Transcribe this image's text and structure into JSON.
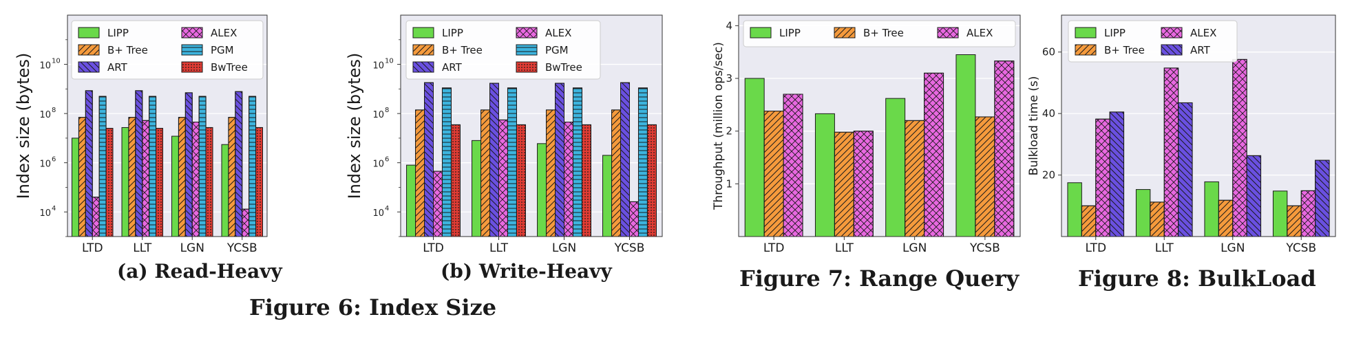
{
  "colors": {
    "LIPP": "#6ad94a",
    "B+ Tree": "#f59a3c",
    "ART": "#6a50e0",
    "ALEX": "#e868e0",
    "PGM": "#3cb4de",
    "BwTree": "#e03c34"
  },
  "captions": {
    "a": "(a) Read-Heavy",
    "b": "(b) Write-Heavy",
    "fig6": "Figure 6: Index Size",
    "fig7": "Figure 7: Range Query",
    "fig8": "Figure 8: BulkLoad"
  },
  "chart_data": [
    {
      "id": "read-heavy",
      "type": "bar",
      "yscale": "log",
      "title": "",
      "xlabel": "",
      "ylabel": "Index size (bytes)",
      "ylim": [
        1000,
        1000000000000
      ],
      "yticks": [
        10000,
        1000000,
        100000000,
        10000000000
      ],
      "ytick_labels": [
        [
          "10",
          "4"
        ],
        [
          "10",
          "6"
        ],
        [
          "10",
          "8"
        ],
        [
          "10",
          "10"
        ]
      ],
      "categories": [
        "LTD",
        "LLT",
        "LGN",
        "YCSB"
      ],
      "legend": {
        "position": "top-left",
        "columns": 2,
        "order": [
          "LIPP",
          "ALEX",
          "B+ Tree",
          "PGM",
          "ART",
          "BwTree"
        ]
      },
      "series": [
        {
          "name": "LIPP",
          "values": [
            10000000,
            27000000,
            12000000,
            5500000
          ]
        },
        {
          "name": "B+ Tree",
          "values": [
            70000000,
            70000000,
            70000000,
            70000000
          ]
        },
        {
          "name": "ART",
          "values": [
            850000000,
            850000000,
            700000000,
            780000000
          ]
        },
        {
          "name": "ALEX",
          "values": [
            40000,
            52000000,
            45000000,
            13000
          ]
        },
        {
          "name": "PGM",
          "values": [
            500000000,
            500000000,
            500000000,
            500000000
          ]
        },
        {
          "name": "BwTree",
          "values": [
            25000000,
            25000000,
            27000000,
            27000000
          ]
        }
      ]
    },
    {
      "id": "write-heavy",
      "type": "bar",
      "yscale": "log",
      "title": "",
      "xlabel": "",
      "ylabel": "Index size (bytes)",
      "ylim": [
        1000,
        1000000000000
      ],
      "yticks": [
        10000,
        1000000,
        100000000,
        10000000000
      ],
      "ytick_labels": [
        [
          "10",
          "4"
        ],
        [
          "10",
          "6"
        ],
        [
          "10",
          "8"
        ],
        [
          "10",
          "10"
        ]
      ],
      "categories": [
        "LTD",
        "LLT",
        "LGN",
        "YCSB"
      ],
      "legend": {
        "position": "top-left",
        "columns": 2,
        "order": [
          "LIPP",
          "ALEX",
          "B+ Tree",
          "PGM",
          "ART",
          "BwTree"
        ]
      },
      "series": [
        {
          "name": "LIPP",
          "values": [
            800000,
            8000000,
            6000000,
            2000000
          ]
        },
        {
          "name": "B+ Tree",
          "values": [
            140000000,
            140000000,
            140000000,
            140000000
          ]
        },
        {
          "name": "ART",
          "values": [
            1800000000,
            1700000000,
            1700000000,
            1800000000
          ]
        },
        {
          "name": "ALEX",
          "values": [
            450000,
            55000000,
            45000000,
            26000
          ]
        },
        {
          "name": "PGM",
          "values": [
            1100000000,
            1100000000,
            1100000000,
            1100000000
          ]
        },
        {
          "name": "BwTree",
          "values": [
            35000000,
            35000000,
            35000000,
            35000000
          ]
        }
      ]
    },
    {
      "id": "range-query",
      "type": "bar",
      "title": "",
      "xlabel": "",
      "ylabel": "Throughput (million ops/sec)",
      "ylim": [
        0,
        4.2
      ],
      "yticks": [
        1,
        2,
        3,
        4
      ],
      "ytick_labels": [
        "1",
        "2",
        "3",
        "4"
      ],
      "categories": [
        "LTD",
        "LLT",
        "LGN",
        "YCSB"
      ],
      "legend": {
        "position": "top",
        "columns": 3,
        "order": [
          "LIPP",
          "B+ Tree",
          "ALEX"
        ]
      },
      "series": [
        {
          "name": "LIPP",
          "values": [
            3.0,
            2.33,
            2.62,
            3.45
          ]
        },
        {
          "name": "B+ Tree",
          "values": [
            2.38,
            1.98,
            2.2,
            2.27
          ]
        },
        {
          "name": "ALEX",
          "values": [
            2.7,
            2.0,
            3.1,
            3.33
          ]
        }
      ]
    },
    {
      "id": "bulkload",
      "type": "bar",
      "title": "",
      "xlabel": "",
      "ylabel": "Bulkload time (s)",
      "ylim": [
        0,
        72
      ],
      "yticks": [
        20,
        40,
        60
      ],
      "ytick_labels": [
        "20",
        "40",
        "60"
      ],
      "categories": [
        "LTD",
        "LLT",
        "LGN",
        "YCSB"
      ],
      "legend": {
        "position": "top-left",
        "columns": 2,
        "order": [
          "LIPP",
          "ALEX",
          "B+ Tree",
          "ART"
        ]
      },
      "series": [
        {
          "name": "LIPP",
          "values": [
            17.5,
            15.3,
            17.8,
            14.8
          ]
        },
        {
          "name": "B+ Tree",
          "values": [
            10.0,
            11.2,
            11.8,
            10.0
          ]
        },
        {
          "name": "ALEX",
          "values": [
            38.2,
            54.8,
            57.6,
            14.9
          ]
        },
        {
          "name": "ART",
          "values": [
            40.5,
            43.5,
            26.3,
            24.8
          ]
        }
      ]
    }
  ]
}
